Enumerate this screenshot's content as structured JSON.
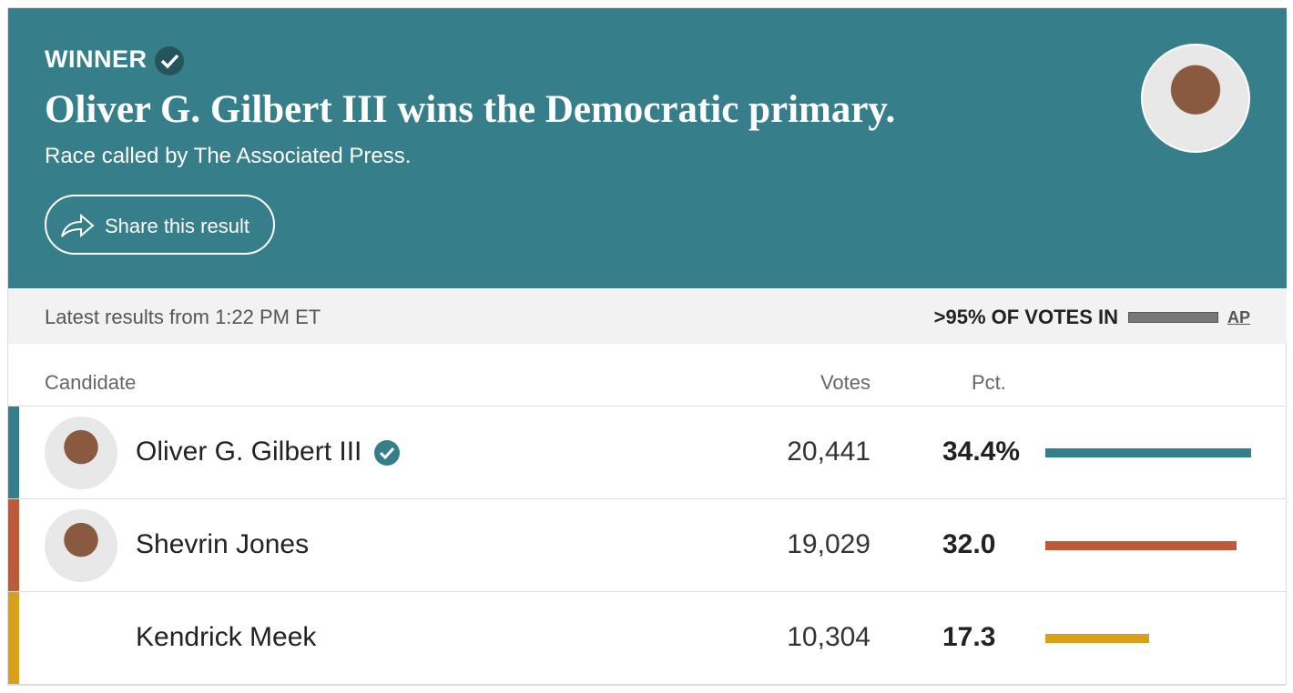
{
  "header": {
    "label": "WINNER",
    "title": "Oliver G. Gilbert III wins the Democratic primary.",
    "subtitle": "Race called by The Associated Press.",
    "share_button": "Share this result"
  },
  "status": {
    "updated": "Latest results from 1:22 PM ET",
    "reporting": ">95% OF VOTES IN",
    "source": "AP"
  },
  "table": {
    "columns": [
      "Candidate",
      "Votes",
      "Pct."
    ],
    "rows": [
      {
        "name": "Oliver G. Gilbert III",
        "votes": "20,441",
        "pct": 34.4,
        "pct_label": "34.4%",
        "color": "#367f8a",
        "winner": true,
        "photo": true
      },
      {
        "name": "Shevrin Jones",
        "votes": "19,029",
        "pct": 32.0,
        "pct_label": "32.0",
        "color": "#c0583a",
        "winner": false,
        "photo": true
      },
      {
        "name": "Kendrick Meek",
        "votes": "10,304",
        "pct": 17.3,
        "pct_label": "17.3",
        "color": "#d9a11a",
        "winner": false,
        "photo": false
      }
    ]
  }
}
